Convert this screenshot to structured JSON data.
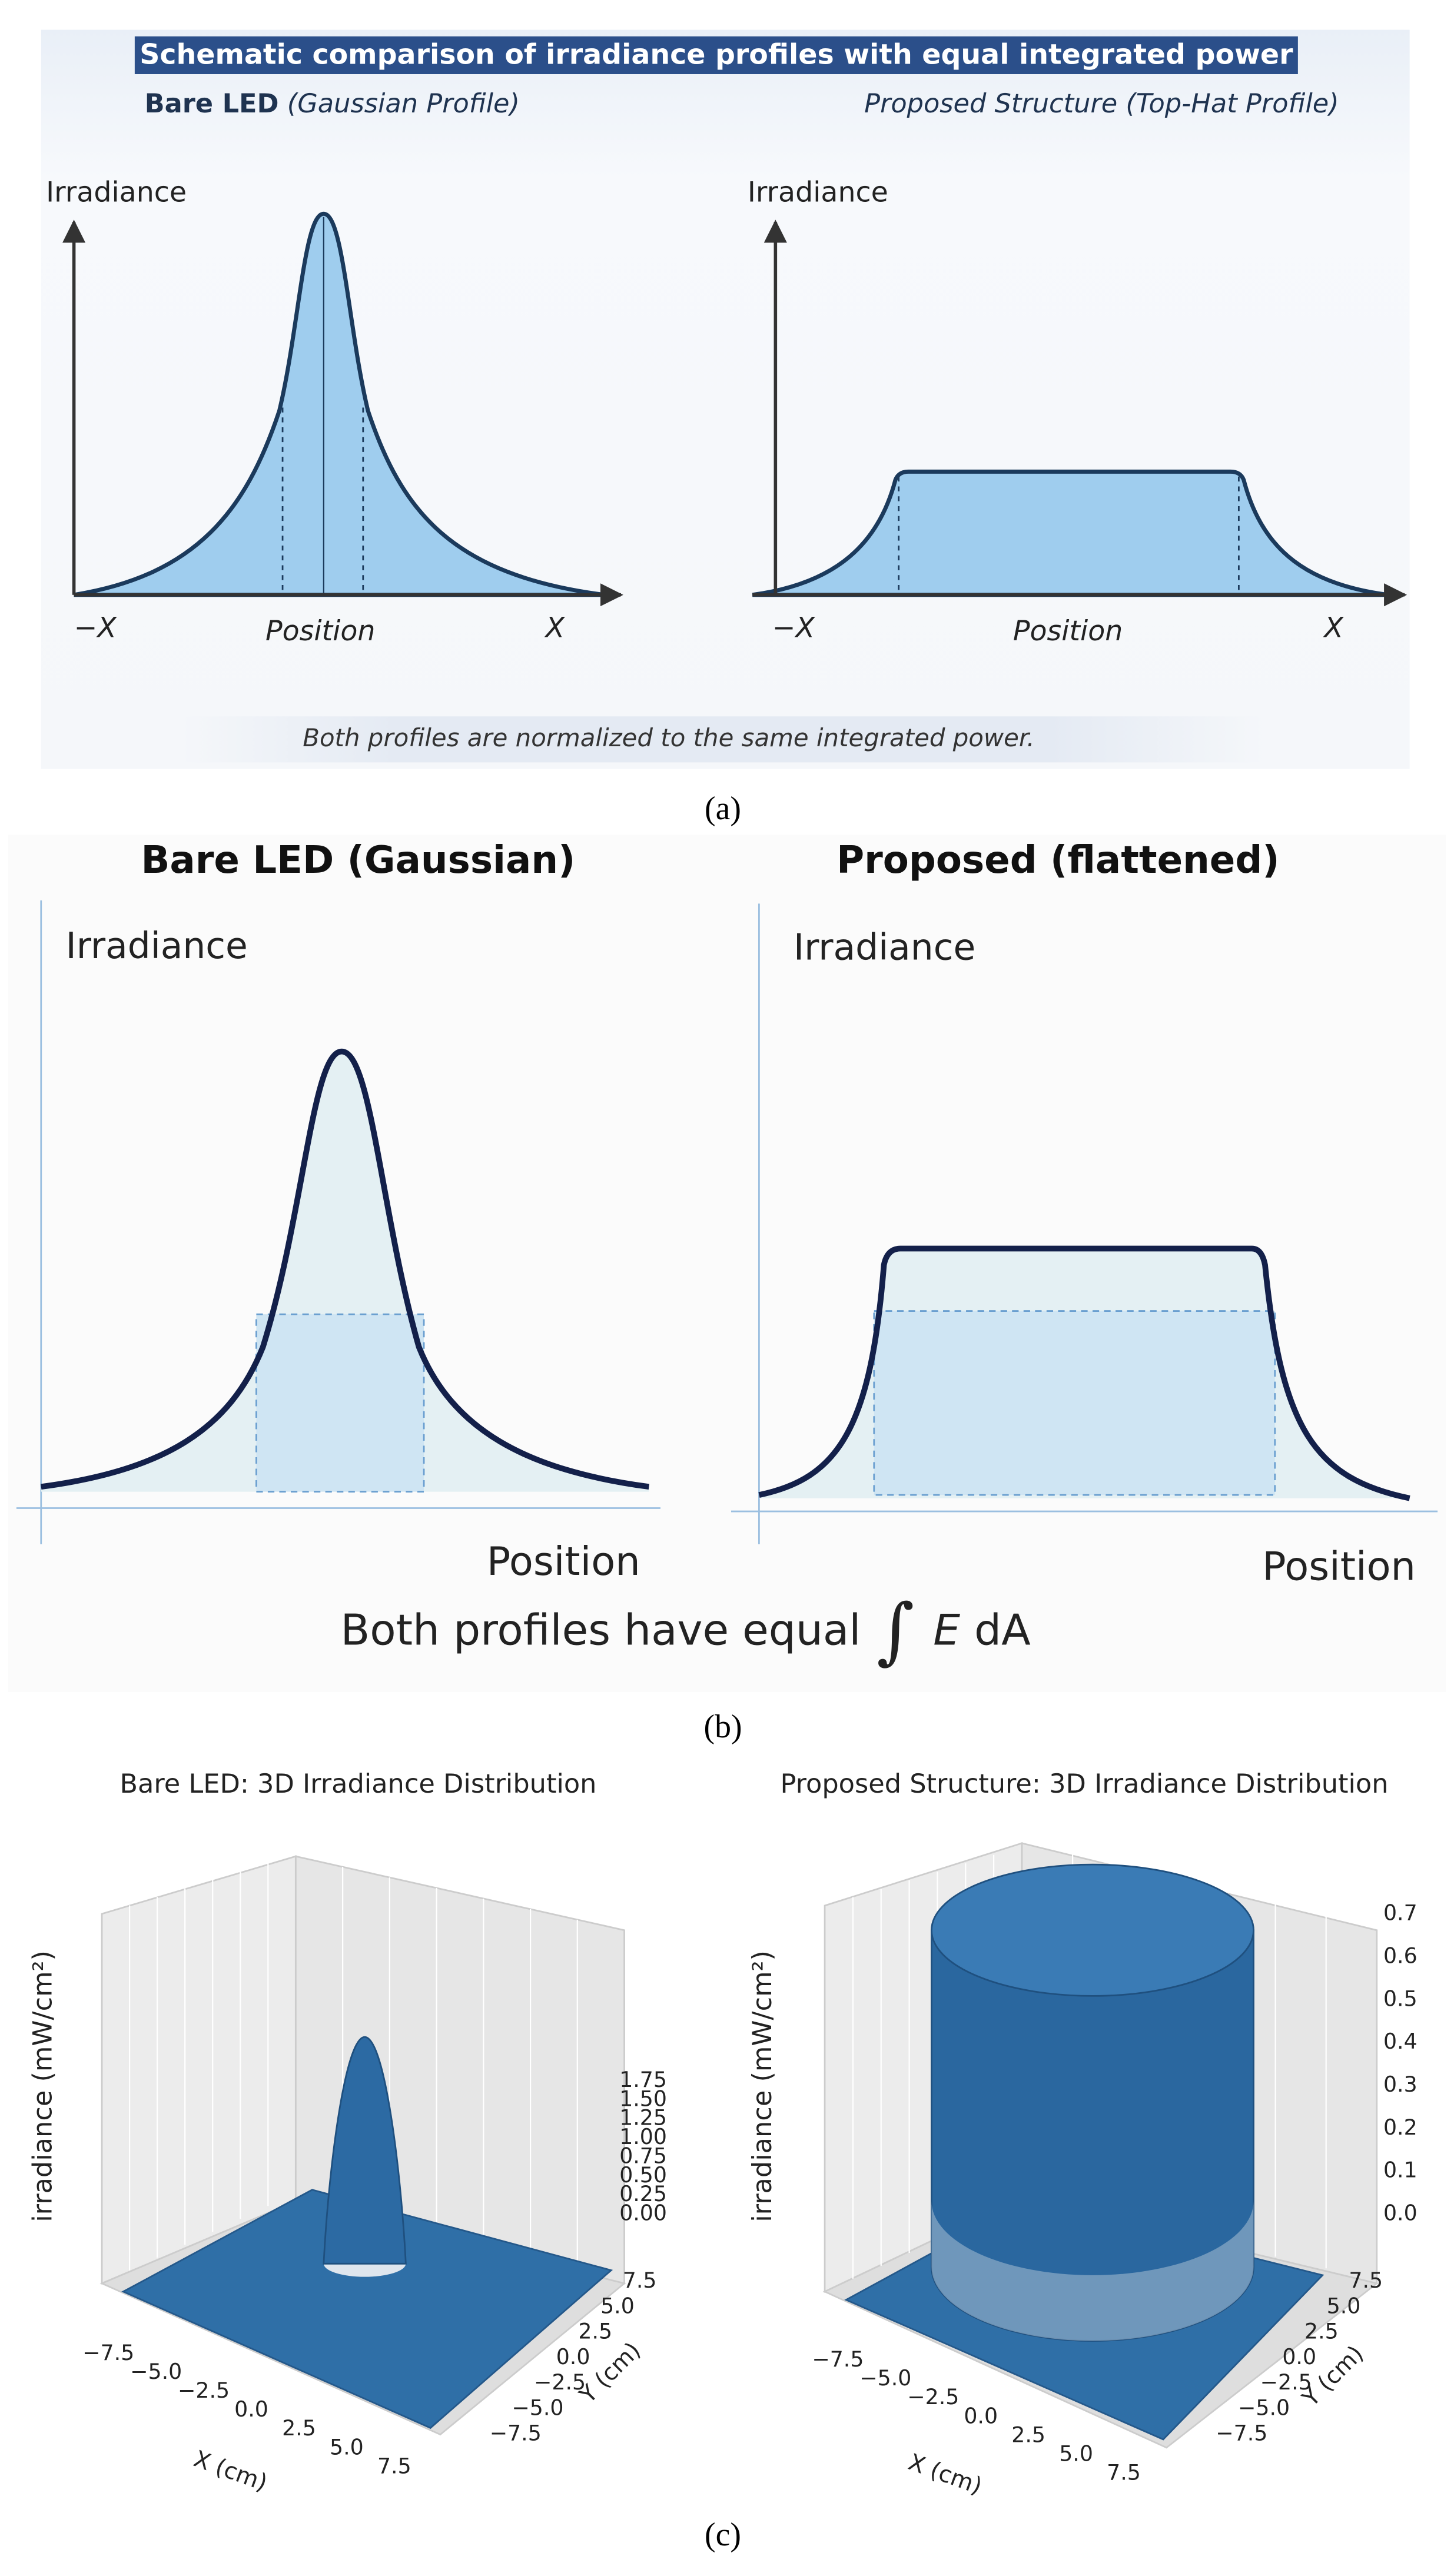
{
  "panel_a": {
    "title": "Schematic comparison of irradiance profiles with equal integrated power",
    "left_heading_bold": "Bare LED",
    "left_heading_italic": "(Gaussian Profile)",
    "right_heading": "Proposed Structure (Top-Hat Profile)",
    "left": {
      "y_label": "Irradiance",
      "x_label": "Position",
      "x_min": "−X",
      "x_max": "X"
    },
    "right": {
      "y_label": "Irradiance",
      "x_label": "Position",
      "x_min": "−X",
      "x_max": "X"
    },
    "note": "Both profiles are normalized to the same integrated power.",
    "caption": "(a)"
  },
  "panel_b": {
    "left": {
      "title": "Bare LED (Gaussian)",
      "y_label": "Irradiance",
      "x_label": "Position"
    },
    "right": {
      "title": "Proposed (flattened)",
      "y_label": "Irradiance",
      "x_label": "Position"
    },
    "equation": {
      "text": "Both profiles have equal",
      "integral": "∫",
      "variable": "E",
      "differential": "dA"
    },
    "caption": "(b)"
  },
  "panel_c": {
    "left": {
      "title": "Bare LED: 3D Irradiance Distribution",
      "z_label": "irradiance (mW/cm²)",
      "x_label": "X (cm)",
      "y_label": "Y (cm)",
      "zticks": [
        "0.00",
        "0.25",
        "0.50",
        "0.75",
        "1.00",
        "1.25",
        "1.50",
        "1.75"
      ],
      "xticks": [
        "−7.5",
        "−5.0",
        "−2.5",
        "0.0",
        "2.5",
        "5.0",
        "7.5"
      ],
      "yticks": [
        "−7.5",
        "−5.0",
        "−2.5",
        "0.0",
        "2.5",
        "5.0",
        "7.5"
      ]
    },
    "right": {
      "title": "Proposed Structure: 3D Irradiance Distribution",
      "z_label": "irradiance (mW/cm²)",
      "x_label": "X (cm)",
      "y_label": "Y (cm)",
      "zticks": [
        "0.0",
        "0.1",
        "0.2",
        "0.3",
        "0.4",
        "0.5",
        "0.6",
        "0.7"
      ],
      "xticks": [
        "−7.5",
        "−5.0",
        "−2.5",
        "0.0",
        "2.5",
        "5.0",
        "7.5"
      ],
      "yticks": [
        "−7.5",
        "−5.0",
        "−2.5",
        "0.0",
        "2.5",
        "5.0",
        "7.5"
      ]
    },
    "caption": "(c)"
  }
}
